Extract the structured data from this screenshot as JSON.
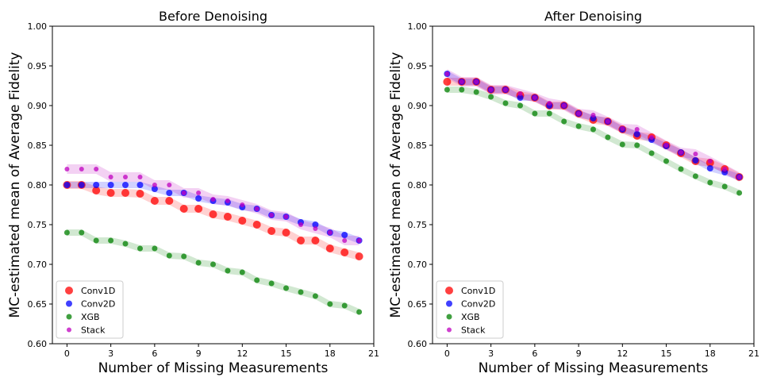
{
  "chart_data": [
    {
      "type": "scatter",
      "title": "Before Denoising",
      "xlabel": "Number of Missing Measurements",
      "ylabel": "MC-estimated mean of Average Fidelity",
      "xlim": [
        -1,
        21
      ],
      "ylim": [
        0.6,
        1.0
      ],
      "xticks": [
        0,
        3,
        6,
        9,
        12,
        15,
        18,
        21
      ],
      "yticks": [
        "0.60",
        "0.65",
        "0.70",
        "0.75",
        "0.80",
        "0.85",
        "0.90",
        "0.95",
        "1.00"
      ],
      "legend_position": "lower-left",
      "x": [
        0,
        1,
        2,
        3,
        4,
        5,
        6,
        7,
        8,
        9,
        10,
        11,
        12,
        13,
        14,
        15,
        16,
        17,
        18,
        19,
        20
      ],
      "series": [
        {
          "name": "Conv1D",
          "color": "#ff0000",
          "values": [
            0.8,
            0.8,
            0.793,
            0.79,
            0.79,
            0.789,
            0.78,
            0.78,
            0.77,
            0.77,
            0.763,
            0.76,
            0.755,
            0.75,
            0.742,
            0.74,
            0.73,
            0.73,
            0.72,
            0.715,
            0.71
          ]
        },
        {
          "name": "Conv2D",
          "color": "#0000ff",
          "values": [
            0.8,
            0.8,
            0.8,
            0.8,
            0.8,
            0.8,
            0.795,
            0.79,
            0.79,
            0.783,
            0.78,
            0.778,
            0.772,
            0.77,
            0.762,
            0.76,
            0.753,
            0.75,
            0.74,
            0.737,
            0.73
          ]
        },
        {
          "name": "XGB",
          "color": "#008000",
          "values": [
            0.74,
            0.74,
            0.73,
            0.73,
            0.726,
            0.72,
            0.72,
            0.711,
            0.71,
            0.702,
            0.7,
            0.692,
            0.69,
            0.68,
            0.676,
            0.67,
            0.665,
            0.66,
            0.65,
            0.648,
            0.64
          ]
        },
        {
          "name": "Stack",
          "color": "#bf00bf",
          "values": [
            0.82,
            0.82,
            0.82,
            0.81,
            0.81,
            0.81,
            0.8,
            0.8,
            0.79,
            0.79,
            0.782,
            0.78,
            0.775,
            0.77,
            0.762,
            0.76,
            0.75,
            0.745,
            0.74,
            0.73,
            0.73
          ]
        }
      ]
    },
    {
      "type": "scatter",
      "title": "After Denoising",
      "xlabel": "Number of Missing Measurements",
      "ylabel": "MC-estimated mean of Average Fidelity",
      "xlim": [
        -1,
        21
      ],
      "ylim": [
        0.6,
        1.0
      ],
      "xticks": [
        0,
        3,
        6,
        9,
        12,
        15,
        18,
        21
      ],
      "yticks": [
        "0.60",
        "0.65",
        "0.70",
        "0.75",
        "0.80",
        "0.85",
        "0.90",
        "0.95",
        "1.00"
      ],
      "legend_position": "lower-left",
      "x": [
        0,
        1,
        2,
        3,
        4,
        5,
        6,
        7,
        8,
        9,
        10,
        11,
        12,
        13,
        14,
        15,
        16,
        17,
        18,
        19,
        20
      ],
      "series": [
        {
          "name": "Conv1D",
          "color": "#ff0000",
          "values": [
            0.93,
            0.93,
            0.93,
            0.92,
            0.92,
            0.913,
            0.91,
            0.9,
            0.9,
            0.89,
            0.882,
            0.88,
            0.87,
            0.862,
            0.86,
            0.85,
            0.84,
            0.83,
            0.828,
            0.82,
            0.81
          ]
        },
        {
          "name": "Conv2D",
          "color": "#0000ff",
          "values": [
            0.94,
            0.93,
            0.93,
            0.92,
            0.92,
            0.91,
            0.91,
            0.9,
            0.9,
            0.89,
            0.884,
            0.88,
            0.87,
            0.864,
            0.857,
            0.849,
            0.841,
            0.831,
            0.821,
            0.816,
            0.81
          ]
        },
        {
          "name": "XGB",
          "color": "#008000",
          "values": [
            0.92,
            0.92,
            0.917,
            0.911,
            0.903,
            0.9,
            0.89,
            0.89,
            0.88,
            0.874,
            0.87,
            0.86,
            0.851,
            0.85,
            0.84,
            0.83,
            0.82,
            0.811,
            0.803,
            0.798,
            0.79
          ]
        },
        {
          "name": "Stack",
          "color": "#bf00bf",
          "values": [
            0.94,
            0.93,
            0.93,
            0.92,
            0.92,
            0.915,
            0.91,
            0.903,
            0.9,
            0.89,
            0.888,
            0.88,
            0.871,
            0.87,
            0.86,
            0.85,
            0.841,
            0.839,
            0.83,
            0.82,
            0.81
          ]
        }
      ]
    }
  ]
}
